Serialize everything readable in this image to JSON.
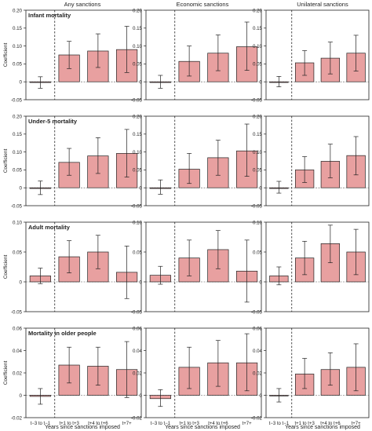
{
  "columns": [
    "Any sanctions",
    "Economic sanctions",
    "Unilateral sanctions"
  ],
  "x_axis_label": "Years since sanctions imposed",
  "y_axis_label": "Coefficient",
  "colors": {
    "bar_fill": "#e8a0a0",
    "bar_stroke": "#222222",
    "error": "#222222",
    "frame": "#222222"
  },
  "chart_data": [
    {
      "type": "bar",
      "title": "Infant mortality",
      "ylim": [
        -0.05,
        0.2
      ],
      "yticks": [
        "-0.05",
        "0",
        "0.05",
        "0.10",
        "0.15",
        "0.20"
      ],
      "categories": [
        "t−3 to t−1",
        "t+1 to t+3",
        "t+4 to t+6",
        "t+7+"
      ],
      "panels": [
        {
          "column": "Any sanctions",
          "values": [
            -0.002,
            0.075,
            0.086,
            0.09
          ],
          "ci_low": [
            -0.018,
            0.037,
            0.04,
            0.026
          ],
          "ci_high": [
            0.014,
            0.113,
            0.134,
            0.155
          ]
        },
        {
          "column": "Economic sanctions",
          "values": [
            0.0,
            0.057,
            0.08,
            0.098
          ],
          "ci_low": [
            -0.018,
            0.016,
            0.031,
            0.032
          ],
          "ci_high": [
            0.018,
            0.1,
            0.131,
            0.167
          ]
        },
        {
          "column": "Unilateral sanctions",
          "values": [
            0.0,
            0.053,
            0.066,
            0.08
          ],
          "ci_low": [
            -0.014,
            0.018,
            0.022,
            0.03
          ],
          "ci_high": [
            0.015,
            0.087,
            0.111,
            0.13
          ]
        }
      ]
    },
    {
      "type": "bar",
      "title": "Under-5 mortality",
      "ylim": [
        -0.05,
        0.2
      ],
      "yticks": [
        "-0.05",
        "0",
        "0.05",
        "0.10",
        "0.15",
        "0.20"
      ],
      "categories": [
        "t−3 to t−1",
        "t+1 to t+3",
        "t+4 to t+6",
        "t+7+"
      ],
      "panels": [
        {
          "column": "Any sanctions",
          "values": [
            0.0,
            0.071,
            0.089,
            0.096
          ],
          "ci_low": [
            -0.019,
            0.035,
            0.04,
            0.03
          ],
          "ci_high": [
            0.019,
            0.11,
            0.14,
            0.163
          ]
        },
        {
          "column": "Economic sanctions",
          "values": [
            0.0,
            0.052,
            0.084,
            0.103
          ],
          "ci_low": [
            -0.018,
            0.012,
            0.035,
            0.032
          ],
          "ci_high": [
            0.022,
            0.096,
            0.133,
            0.178
          ]
        },
        {
          "column": "Unilateral sanctions",
          "values": [
            0.0,
            0.05,
            0.074,
            0.09
          ],
          "ci_low": [
            -0.015,
            0.015,
            0.028,
            0.036
          ],
          "ci_high": [
            0.018,
            0.087,
            0.122,
            0.143
          ]
        }
      ]
    },
    {
      "type": "bar",
      "title": "Adult mortality",
      "ylim": [
        -0.05,
        0.1
      ],
      "yticks": [
        "-0.05",
        "0",
        "0.05",
        "0.10"
      ],
      "categories": [
        "t−3 to t−1",
        "t+1 to t+3",
        "t+4 to t+6",
        "t+7+"
      ],
      "panels": [
        {
          "column": "Any sanctions",
          "values": [
            0.01,
            0.042,
            0.05,
            0.016
          ],
          "ci_low": [
            -0.003,
            0.015,
            0.022,
            -0.028
          ],
          "ci_high": [
            0.023,
            0.069,
            0.078,
            0.06
          ]
        },
        {
          "column": "Economic sanctions",
          "values": [
            0.011,
            0.04,
            0.054,
            0.018
          ],
          "ci_low": [
            -0.004,
            0.01,
            0.022,
            -0.034
          ],
          "ci_high": [
            0.026,
            0.07,
            0.086,
            0.07
          ]
        },
        {
          "column": "Unilateral sanctions",
          "values": [
            0.01,
            0.04,
            0.064,
            0.05
          ],
          "ci_low": [
            -0.005,
            0.012,
            0.032,
            0.012
          ],
          "ci_high": [
            0.025,
            0.068,
            0.095,
            0.088
          ]
        }
      ]
    },
    {
      "type": "bar",
      "title": "Mortality in older people",
      "ylim": [
        -0.02,
        0.06
      ],
      "yticks": [
        "-0.02",
        "0",
        "0.02",
        "0.04",
        "0.06"
      ],
      "categories": [
        "t−3 to t−1",
        "t+1 to t+3",
        "t+4 to t+6",
        "t+7+"
      ],
      "panels": [
        {
          "column": "Any sanctions",
          "values": [
            -0.001,
            0.027,
            0.026,
            0.023
          ],
          "ci_low": [
            -0.008,
            0.011,
            0.009,
            -0.002
          ],
          "ci_high": [
            0.006,
            0.043,
            0.043,
            0.048
          ]
        },
        {
          "column": "Economic sanctions",
          "values": [
            -0.003,
            0.025,
            0.029,
            0.029
          ],
          "ci_low": [
            -0.01,
            0.006,
            0.008,
            0.004
          ],
          "ci_high": [
            0.005,
            0.043,
            0.049,
            0.055
          ]
        },
        {
          "column": "Unilateral sanctions",
          "values": [
            0.0,
            0.019,
            0.023,
            0.025
          ],
          "ci_low": [
            -0.006,
            0.006,
            0.009,
            0.004
          ],
          "ci_high": [
            0.006,
            0.033,
            0.038,
            0.046
          ]
        }
      ]
    }
  ]
}
